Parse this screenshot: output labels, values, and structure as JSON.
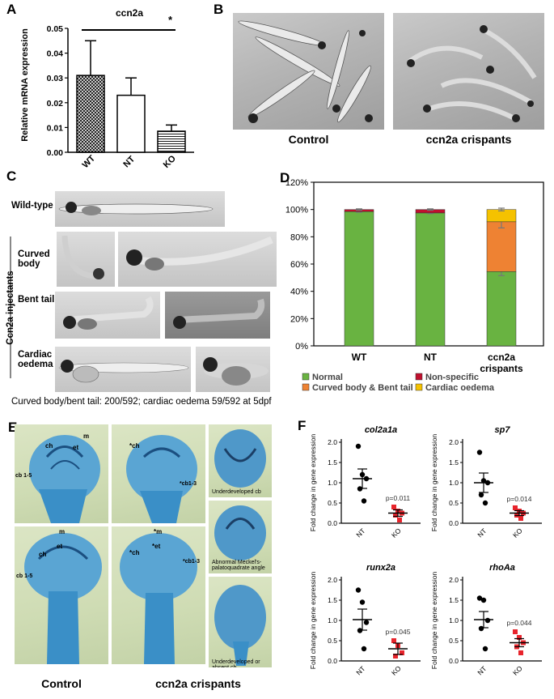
{
  "panels": {
    "a": "A",
    "b": "B",
    "c": "C",
    "d": "D",
    "e": "E",
    "f": "F"
  },
  "panel_b": {
    "control_caption": "Control",
    "crispants_caption": "ccn2a crispants"
  },
  "panel_c": {
    "wild_type": "Wild-type",
    "group_label": "Ccn2a injectants",
    "curved_body": "Curved body",
    "bent_tail": "Bent tail",
    "cardiac_oedema": "Cardiac oedema",
    "footnote": "Curved body/bent tail: 200/592;  cardiac oedema 59/592 at 5dpf"
  },
  "panel_e": {
    "control_caption": "Control",
    "crispants_caption": "ccn2a crispants",
    "labels": {
      "m": "m",
      "ch": "ch",
      "et": "et",
      "cb15": "cb 1-5",
      "ch_star": "*ch",
      "m_star": "*m",
      "et_star": "*et",
      "cb13_star": "*cb1-3",
      "ch_dstar": "*ch",
      "under_cb": "Underdeveloped cb",
      "meckel": "Abnormal Meckel's-palatoquadrate angle",
      "under_absent": "Underdeveloped or absent cb"
    }
  },
  "colors": {
    "normal": "#69b341",
    "nonspecific": "#c0102e",
    "curved": "#ee8233",
    "cardiac": "#f5c200",
    "marker_nt": "#000000",
    "marker_ko": "#e8242c",
    "alcian": "#3a8fc7"
  },
  "chart_data": [
    {
      "id": "A",
      "type": "bar",
      "title": "ccn2a",
      "ylabel": "Relative mRNA expression",
      "categories": [
        "WT",
        "NT",
        "KO"
      ],
      "values": [
        0.031,
        0.023,
        0.0085
      ],
      "errors": [
        0.014,
        0.007,
        0.0025
      ],
      "ylim": [
        0,
        0.05
      ],
      "yticks": [
        "0.00",
        "0.01",
        "0.02",
        "0.03",
        "0.04",
        "0.05"
      ],
      "significance": "*",
      "patterns": [
        "crosshatch",
        "white",
        "horizontal-lines"
      ]
    },
    {
      "id": "D",
      "type": "bar",
      "stacked": true,
      "categories": [
        "WT",
        "NT",
        "ccn2a crispants"
      ],
      "ylim": [
        0,
        1.2
      ],
      "yticks": [
        "0%",
        "20%",
        "40%",
        "60%",
        "80%",
        "100%",
        "120%"
      ],
      "series": [
        {
          "name": "Normal",
          "values": [
            0.985,
            0.975,
            0.545
          ],
          "errors": [
            0.005,
            0.005,
            0.03
          ]
        },
        {
          "name": "Non-specific",
          "values": [
            0.015,
            0.025,
            0.0
          ],
          "errors": [
            0.005,
            0.005,
            0
          ]
        },
        {
          "name": "Curved body & Bent tail",
          "values": [
            0.0,
            0.0,
            0.365
          ],
          "errors": [
            0,
            0,
            0.045
          ]
        },
        {
          "name": "Cardiac oedema",
          "values": [
            0.0,
            0.0,
            0.09
          ],
          "errors": [
            0,
            0,
            0.01
          ]
        }
      ],
      "legend": "bottom"
    },
    {
      "id": "F-col2a1a",
      "type": "scatter",
      "title": "col2a1a",
      "ylabel": "Fold change in gene expression",
      "categories": [
        "NT",
        "KO"
      ],
      "ylim": [
        0,
        2.0
      ],
      "yticks": [
        "0.0",
        "0.5",
        "1.0",
        "1.5",
        "2.0"
      ],
      "points": {
        "NT": [
          1.9,
          1.2,
          1.1,
          0.85,
          0.55
        ],
        "KO": [
          0.4,
          0.3,
          0.25,
          0.2,
          0.08
        ]
      },
      "mean": [
        1.1,
        0.25
      ],
      "sem": [
        0.24,
        0.08
      ],
      "annotation": "p=0.011"
    },
    {
      "id": "F-sp7",
      "type": "scatter",
      "title": "sp7",
      "ylabel": "Fold change in gene expression",
      "categories": [
        "NT",
        "KO"
      ],
      "ylim": [
        0,
        2.0
      ],
      "yticks": [
        "0.0",
        "0.5",
        "1.0",
        "1.5",
        "2.0"
      ],
      "points": {
        "NT": [
          1.75,
          1.05,
          1.0,
          0.7,
          0.5
        ],
        "KO": [
          0.38,
          0.3,
          0.25,
          0.2,
          0.12
        ]
      },
      "mean": [
        1.0,
        0.25
      ],
      "sem": [
        0.24,
        0.06
      ],
      "annotation": "p=0.014"
    },
    {
      "id": "F-runx2a",
      "type": "scatter",
      "title": "runx2a",
      "ylabel": "Fold change in gene expression",
      "categories": [
        "NT",
        "KO"
      ],
      "ylim": [
        0,
        2.0
      ],
      "yticks": [
        "0.0",
        "0.5",
        "1.0",
        "1.5",
        "2.0"
      ],
      "points": {
        "NT": [
          1.75,
          1.45,
          0.95,
          0.75,
          0.3
        ],
        "KO": [
          0.5,
          0.38,
          0.2,
          0.12
        ]
      },
      "mean": [
        1.02,
        0.3
      ],
      "sem": [
        0.26,
        0.14
      ],
      "annotation": "p=0.045"
    },
    {
      "id": "F-rhoAa",
      "type": "scatter",
      "title": "rhoAa",
      "ylabel": "Fold change in gene expression",
      "categories": [
        "NT",
        "KO"
      ],
      "ylim": [
        0,
        2.0
      ],
      "yticks": [
        "0.0",
        "0.5",
        "1.0",
        "1.5",
        "2.0"
      ],
      "points": {
        "NT": [
          1.55,
          1.5,
          1.0,
          0.8,
          0.3
        ],
        "KO": [
          0.72,
          0.58,
          0.45,
          0.35,
          0.2
        ]
      },
      "mean": [
        1.02,
        0.45
      ],
      "sem": [
        0.2,
        0.1
      ],
      "annotation": "p=0.044"
    }
  ]
}
